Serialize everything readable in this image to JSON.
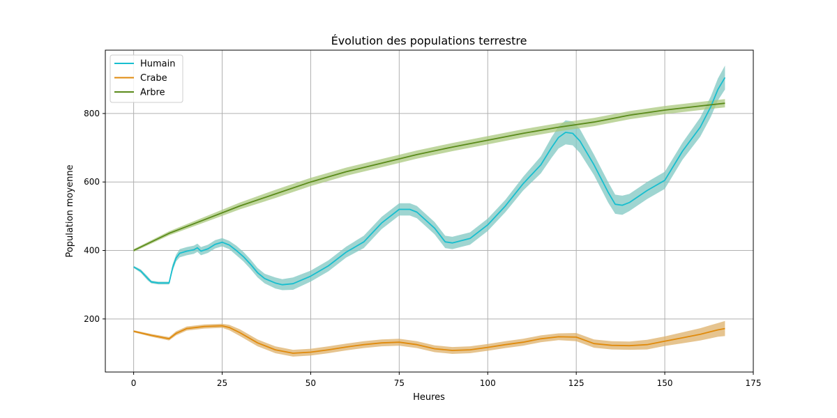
{
  "chart_data": {
    "type": "line",
    "title": "Évolution des populations terrestre",
    "xlabel": "Heures",
    "ylabel": "Population moyenne",
    "xlim": [
      -8,
      175
    ],
    "ylim": [
      45,
      985
    ],
    "xticks": [
      0,
      25,
      50,
      75,
      100,
      125,
      150,
      175
    ],
    "yticks": [
      200,
      400,
      600,
      800
    ],
    "grid": true,
    "legend": "top-left",
    "series": [
      {
        "name": "Humain",
        "color": "#17becf",
        "band_color": "#7fc7c1",
        "x": [
          0,
          2,
          4,
          5,
          7,
          9,
          10,
          11,
          12,
          13,
          15,
          17,
          18,
          19,
          21,
          23,
          25,
          27,
          29,
          31,
          33,
          35,
          37,
          40,
          42,
          45,
          50,
          55,
          60,
          65,
          70,
          75,
          78,
          80,
          85,
          88,
          90,
          95,
          100,
          105,
          110,
          115,
          118,
          120,
          122,
          124,
          126,
          130,
          134,
          136,
          138,
          140,
          145,
          150,
          155,
          160,
          163,
          165,
          167
        ],
        "y": [
          352,
          340,
          318,
          308,
          305,
          305,
          305,
          350,
          378,
          392,
          398,
          402,
          408,
          398,
          405,
          418,
          424,
          416,
          400,
          382,
          360,
          335,
          318,
          305,
          300,
          303,
          325,
          355,
          395,
          425,
          480,
          520,
          520,
          512,
          465,
          425,
          422,
          435,
          475,
          530,
          595,
          650,
          700,
          730,
          745,
          742,
          720,
          650,
          570,
          535,
          532,
          540,
          575,
          605,
          690,
          760,
          820,
          870,
          905
        ],
        "band": [
          3,
          5,
          6,
          4,
          4,
          4,
          4,
          10,
          10,
          12,
          12,
          12,
          12,
          12,
          12,
          12,
          12,
          12,
          14,
          14,
          14,
          14,
          14,
          16,
          16,
          18,
          16,
          16,
          16,
          18,
          18,
          18,
          18,
          18,
          18,
          18,
          18,
          18,
          18,
          18,
          20,
          25,
          30,
          32,
          35,
          35,
          35,
          30,
          30,
          28,
          28,
          25,
          25,
          25,
          25,
          28,
          30,
          32,
          35
        ]
      },
      {
        "name": "Crabe",
        "color": "#e08a0b",
        "band_color": "#ddb06a",
        "x": [
          0,
          5,
          10,
          12,
          15,
          20,
          25,
          27,
          30,
          35,
          40,
          45,
          50,
          55,
          60,
          65,
          70,
          75,
          80,
          85,
          90,
          95,
          100,
          105,
          110,
          115,
          120,
          125,
          130,
          135,
          140,
          145,
          150,
          155,
          160,
          165,
          167
        ],
        "y": [
          164,
          152,
          142,
          158,
          172,
          178,
          180,
          175,
          160,
          130,
          110,
          100,
          103,
          110,
          118,
          125,
          130,
          132,
          125,
          113,
          108,
          110,
          117,
          125,
          132,
          142,
          148,
          147,
          128,
          123,
          122,
          125,
          135,
          145,
          155,
          168,
          172
        ],
        "band": [
          3,
          4,
          5,
          6,
          6,
          6,
          6,
          8,
          10,
          10,
          10,
          10,
          10,
          10,
          10,
          10,
          10,
          10,
          10,
          10,
          10,
          10,
          10,
          10,
          10,
          10,
          10,
          12,
          12,
          12,
          12,
          14,
          14,
          16,
          18,
          20,
          22
        ]
      },
      {
        "name": "Arbre",
        "color": "#5a8a1a",
        "band_color": "#a9c87e",
        "x": [
          0,
          10,
          20,
          30,
          40,
          50,
          60,
          70,
          80,
          90,
          100,
          110,
          120,
          130,
          140,
          150,
          160,
          167
        ],
        "y": [
          400,
          450,
          490,
          530,
          565,
          600,
          630,
          655,
          680,
          702,
          722,
          742,
          760,
          775,
          795,
          810,
          822,
          830
        ],
        "band": [
          4,
          6,
          8,
          10,
          12,
          12,
          12,
          12,
          12,
          12,
          12,
          12,
          12,
          12,
          12,
          12,
          12,
          12
        ]
      }
    ]
  }
}
